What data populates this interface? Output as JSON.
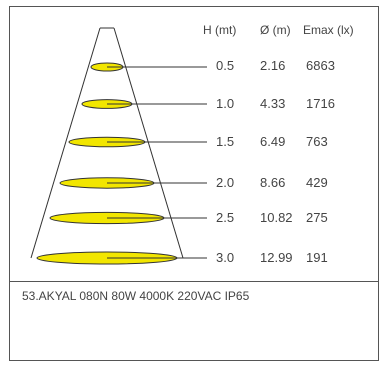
{
  "headers": {
    "h": "H (mt)",
    "d": "Ø (m)",
    "e": "Emax (lx)"
  },
  "rows": [
    {
      "h": "0.5",
      "d": "2.16",
      "e": "6863"
    },
    {
      "h": "1.0",
      "d": "4.33",
      "e": "1716"
    },
    {
      "h": "1.5",
      "d": "6.49",
      "e": "763"
    },
    {
      "h": "2.0",
      "d": "8.66",
      "e": "429"
    },
    {
      "h": "2.5",
      "d": "10.82",
      "e": "275"
    },
    {
      "h": "3.0",
      "d": "12.99",
      "e": "191"
    }
  ],
  "caption": "53.AKYAL 080N 80W 4000K 220VAC IP65",
  "colors": {
    "ellipse_fill": "#f2e600",
    "line": "#333333",
    "text": "#444444"
  }
}
